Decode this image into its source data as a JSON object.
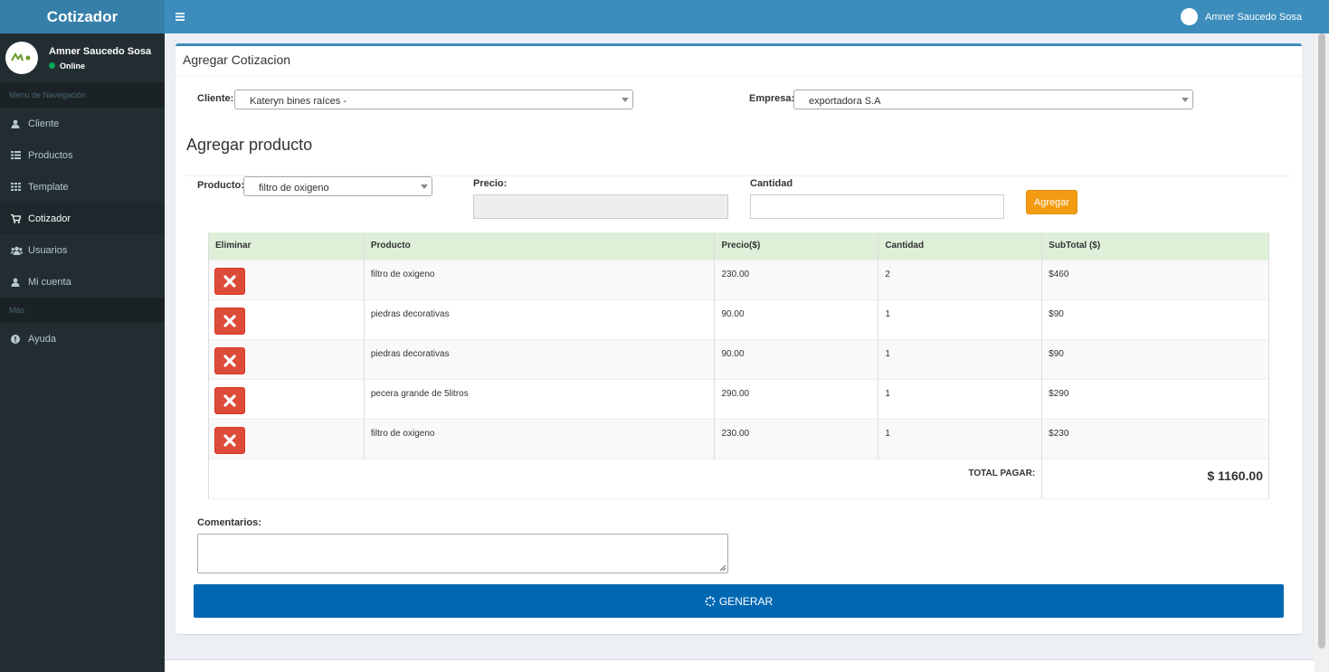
{
  "app": {
    "title": "Cotizador"
  },
  "user": {
    "name": "Amner Saucedo Sosa",
    "status": "Online"
  },
  "sidebar": {
    "nav_header": "Menu de Navegación",
    "items": [
      {
        "label": "Cliente",
        "icon": "user-icon"
      },
      {
        "label": "Productos",
        "icon": "list-icon"
      },
      {
        "label": "Template",
        "icon": "grid-icon"
      },
      {
        "label": "Cotizador",
        "icon": "cart-icon"
      },
      {
        "label": "Usuarios",
        "icon": "users-icon"
      },
      {
        "label": "Mi cuenta",
        "icon": "user-icon"
      }
    ],
    "more_header": "Más",
    "more_items": [
      {
        "label": "Ayuda",
        "icon": "info-circle-icon"
      }
    ]
  },
  "topbar": {
    "user_name": "Amner Saucedo Sosa"
  },
  "form": {
    "box_title": "Agregar Cotizacion",
    "cliente_label": "Cliente:",
    "cliente_value": "Kateryn bines raíces -",
    "empresa_label": "Empresa:",
    "empresa_value": "exportadora S.A",
    "section_title": "Agregar producto",
    "producto_label": "Producto:",
    "producto_value": "filtro de oxigeno",
    "precio_label": "Precio:",
    "cantidad_label": "Cantidad",
    "agregar_button": "Agregar"
  },
  "table": {
    "headers": [
      "Eliminar",
      "Producto",
      "Precio($)",
      "Cantidad",
      "SubTotal ($)"
    ],
    "rows": [
      {
        "producto": "filtro de oxigeno",
        "precio": "230.00",
        "cantidad": "2",
        "subtotal": "$460"
      },
      {
        "producto": "piedras decorativas",
        "precio": "90.00",
        "cantidad": "1",
        "subtotal": "$90"
      },
      {
        "producto": "piedras decorativas",
        "precio": "90.00",
        "cantidad": "1",
        "subtotal": "$90"
      },
      {
        "producto": "pecera grande de 5litros",
        "precio": "290.00",
        "cantidad": "1",
        "subtotal": "$290"
      },
      {
        "producto": "filtro de oxigeno",
        "precio": "230.00",
        "cantidad": "1",
        "subtotal": "$230"
      }
    ],
    "total_label": "TOTAL PAGAR:",
    "total_value": "$ 1160.00"
  },
  "comments": {
    "label": "Comentarios:"
  },
  "generar_button": "GENERAR",
  "colors": {
    "primary": "#3c8dbc",
    "sidebar": "#222d32",
    "warning": "#f39c12",
    "danger": "#dd4b39",
    "generar": "#0068b3"
  }
}
